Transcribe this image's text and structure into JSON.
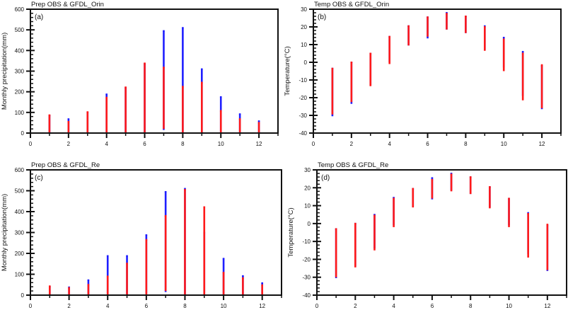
{
  "colors": {
    "obs": "#1f1fff",
    "model": "#ff1a1a",
    "axis": "#111111"
  },
  "chart_data": [
    {
      "type": "scatter",
      "panel": "(a)",
      "title": "Prep OBS & GFDL_Orin",
      "xlabel": "",
      "ylabel": "Monthly precipitation(mm)",
      "xlim": [
        0,
        13
      ],
      "ylim": [
        0,
        600
      ],
      "xticks": [
        0,
        2,
        4,
        6,
        8,
        10,
        12
      ],
      "yticks": [
        0,
        100,
        200,
        300,
        400,
        500,
        600
      ],
      "y_minor_step": 20,
      "series": [
        {
          "name": "OBS",
          "color": "blue",
          "ranges": [
            {
              "x": 1,
              "min": 0,
              "max": 85
            },
            {
              "x": 2,
              "min": 0,
              "max": 68
            },
            {
              "x": 3,
              "min": 0,
              "max": 100
            },
            {
              "x": 4,
              "min": 0,
              "max": 188
            },
            {
              "x": 5,
              "min": 0,
              "max": 220
            },
            {
              "x": 6,
              "min": 0,
              "max": 335
            },
            {
              "x": 7,
              "min": 15,
              "max": 495
            },
            {
              "x": 8,
              "min": 0,
              "max": 510
            },
            {
              "x": 9,
              "min": 0,
              "max": 310
            },
            {
              "x": 10,
              "min": 0,
              "max": 175
            },
            {
              "x": 11,
              "min": 0,
              "max": 92
            },
            {
              "x": 12,
              "min": 0,
              "max": 58
            }
          ]
        },
        {
          "name": "GFDL_Orin",
          "color": "red",
          "ranges": [
            {
              "x": 1,
              "min": 0,
              "max": 87
            },
            {
              "x": 2,
              "min": 0,
              "max": 55
            },
            {
              "x": 3,
              "min": 0,
              "max": 102
            },
            {
              "x": 4,
              "min": 0,
              "max": 172
            },
            {
              "x": 5,
              "min": 0,
              "max": 222
            },
            {
              "x": 6,
              "min": 0,
              "max": 338
            },
            {
              "x": 7,
              "min": 20,
              "max": 318
            },
            {
              "x": 8,
              "min": 0,
              "max": 225
            },
            {
              "x": 9,
              "min": 0,
              "max": 245
            },
            {
              "x": 10,
              "min": 0,
              "max": 108
            },
            {
              "x": 11,
              "min": 0,
              "max": 68
            },
            {
              "x": 12,
              "min": 0,
              "max": 50
            }
          ]
        }
      ]
    },
    {
      "type": "scatter",
      "panel": "(b)",
      "title": "Temp OBS & GFDL_Orin",
      "xlabel": "",
      "ylabel": "Temperature(°C)",
      "xlim": [
        0,
        13
      ],
      "ylim": [
        -40,
        30
      ],
      "xticks": [
        0,
        2,
        4,
        6,
        8,
        10,
        12
      ],
      "yticks": [
        -40,
        -30,
        -20,
        -10,
        0,
        10,
        20,
        30
      ],
      "y_minor_step": 2,
      "series": [
        {
          "name": "OBS",
          "color": "blue",
          "ranges": [
            {
              "x": 1,
              "min": -30.5,
              "max": -3.5
            },
            {
              "x": 2,
              "min": -23.5,
              "max": 0
            },
            {
              "x": 3,
              "min": -13,
              "max": 5
            },
            {
              "x": 4,
              "min": 0,
              "max": 14.5
            },
            {
              "x": 5,
              "min": 9.5,
              "max": 20.5
            },
            {
              "x": 6,
              "min": 13.5,
              "max": 25.5
            },
            {
              "x": 7,
              "min": 18.5,
              "max": 28
            },
            {
              "x": 8,
              "min": 16.5,
              "max": 26
            },
            {
              "x": 9,
              "min": 7,
              "max": 20.5
            },
            {
              "x": 10,
              "min": -3,
              "max": 14
            },
            {
              "x": 11,
              "min": -19,
              "max": 6
            },
            {
              "x": 12,
              "min": -26.5,
              "max": -2
            }
          ]
        },
        {
          "name": "GFDL_Orin",
          "color": "red",
          "ranges": [
            {
              "x": 1,
              "min": -29.5,
              "max": -3.5
            },
            {
              "x": 2,
              "min": -22.5,
              "max": 0
            },
            {
              "x": 3,
              "min": -13.5,
              "max": 5
            },
            {
              "x": 4,
              "min": -1,
              "max": 14.5
            },
            {
              "x": 5,
              "min": 9.5,
              "max": 20.5
            },
            {
              "x": 6,
              "min": 14.5,
              "max": 25.5
            },
            {
              "x": 7,
              "min": 18.5,
              "max": 27.5
            },
            {
              "x": 8,
              "min": 16.5,
              "max": 26
            },
            {
              "x": 9,
              "min": 6.5,
              "max": 20
            },
            {
              "x": 10,
              "min": -5,
              "max": 13
            },
            {
              "x": 11,
              "min": -21.5,
              "max": 5
            },
            {
              "x": 12,
              "min": -26,
              "max": -1.5
            }
          ]
        }
      ]
    },
    {
      "type": "scatter",
      "panel": "(c)",
      "title": "Prep OBS & GFDL_Re",
      "xlabel": "",
      "ylabel": "Monthly precipitation(mm)",
      "xlim": [
        0,
        13
      ],
      "ylim": [
        0,
        600
      ],
      "xticks": [
        0,
        2,
        4,
        6,
        8,
        10,
        12
      ],
      "yticks": [
        0,
        100,
        200,
        300,
        400,
        500,
        600
      ],
      "y_minor_step": 20,
      "series": [
        {
          "name": "OBS",
          "color": "blue",
          "ranges": [
            {
              "x": 1,
              "min": 0,
              "max": 40
            },
            {
              "x": 2,
              "min": 0,
              "max": 38
            },
            {
              "x": 3,
              "min": 0,
              "max": 72
            },
            {
              "x": 4,
              "min": 0,
              "max": 188
            },
            {
              "x": 5,
              "min": 0,
              "max": 188
            },
            {
              "x": 6,
              "min": 5,
              "max": 288
            },
            {
              "x": 7,
              "min": 15,
              "max": 495
            },
            {
              "x": 8,
              "min": 0,
              "max": 510
            },
            {
              "x": 9,
              "min": 0,
              "max": 300
            },
            {
              "x": 10,
              "min": 0,
              "max": 175
            },
            {
              "x": 11,
              "min": 0,
              "max": 92
            },
            {
              "x": 12,
              "min": 0,
              "max": 58
            }
          ]
        },
        {
          "name": "GFDL_Re",
          "color": "red",
          "ranges": [
            {
              "x": 1,
              "min": 0,
              "max": 43
            },
            {
              "x": 2,
              "min": 0,
              "max": 35
            },
            {
              "x": 3,
              "min": 0,
              "max": 50
            },
            {
              "x": 4,
              "min": 0,
              "max": 90
            },
            {
              "x": 5,
              "min": 0,
              "max": 152
            },
            {
              "x": 6,
              "min": 0,
              "max": 265
            },
            {
              "x": 7,
              "min": 20,
              "max": 380
            },
            {
              "x": 8,
              "min": 0,
              "max": 505
            },
            {
              "x": 9,
              "min": 0,
              "max": 422
            },
            {
              "x": 10,
              "min": 0,
              "max": 108
            },
            {
              "x": 11,
              "min": 0,
              "max": 82
            },
            {
              "x": 12,
              "min": 0,
              "max": 48
            }
          ]
        }
      ]
    },
    {
      "type": "scatter",
      "panel": "(d)",
      "title": "Temp OBS & GFDL_Re",
      "xlabel": "",
      "ylabel": "Temperature(°C)",
      "xlim": [
        0,
        13
      ],
      "ylim": [
        -40,
        30
      ],
      "xticks": [
        0,
        2,
        4,
        6,
        8,
        10,
        12
      ],
      "yticks": [
        -40,
        -30,
        -20,
        -10,
        0,
        10,
        20,
        30
      ],
      "y_minor_step": 2,
      "series": [
        {
          "name": "OBS",
          "color": "blue",
          "ranges": [
            {
              "x": 1,
              "min": -30.5,
              "max": -3
            },
            {
              "x": 2,
              "min": -24,
              "max": 0
            },
            {
              "x": 3,
              "min": -14,
              "max": 5
            },
            {
              "x": 4,
              "min": -1,
              "max": 14.5
            },
            {
              "x": 5,
              "min": 9.5,
              "max": 19.5
            },
            {
              "x": 6,
              "min": 13.5,
              "max": 25.5
            },
            {
              "x": 7,
              "min": 18.5,
              "max": 28
            },
            {
              "x": 8,
              "min": 16.5,
              "max": 26
            },
            {
              "x": 9,
              "min": 9,
              "max": 20.5
            },
            {
              "x": 10,
              "min": -1,
              "max": 14
            },
            {
              "x": 11,
              "min": -17,
              "max": 6
            },
            {
              "x": 12,
              "min": -26.5,
              "max": -1
            }
          ]
        },
        {
          "name": "GFDL_Re",
          "color": "red",
          "ranges": [
            {
              "x": 1,
              "min": -30,
              "max": -3
            },
            {
              "x": 2,
              "min": -24.5,
              "max": 0
            },
            {
              "x": 3,
              "min": -15,
              "max": 4.5
            },
            {
              "x": 4,
              "min": -2,
              "max": 14
            },
            {
              "x": 5,
              "min": 9,
              "max": 19.5
            },
            {
              "x": 6,
              "min": 14,
              "max": 24.5
            },
            {
              "x": 7,
              "min": 18,
              "max": 27.5
            },
            {
              "x": 8,
              "min": 16.5,
              "max": 26
            },
            {
              "x": 9,
              "min": 8.5,
              "max": 20.5
            },
            {
              "x": 10,
              "min": -2,
              "max": 14
            },
            {
              "x": 11,
              "min": -19,
              "max": 5.5
            },
            {
              "x": 12,
              "min": -26,
              "max": -0.5
            }
          ]
        }
      ]
    }
  ]
}
